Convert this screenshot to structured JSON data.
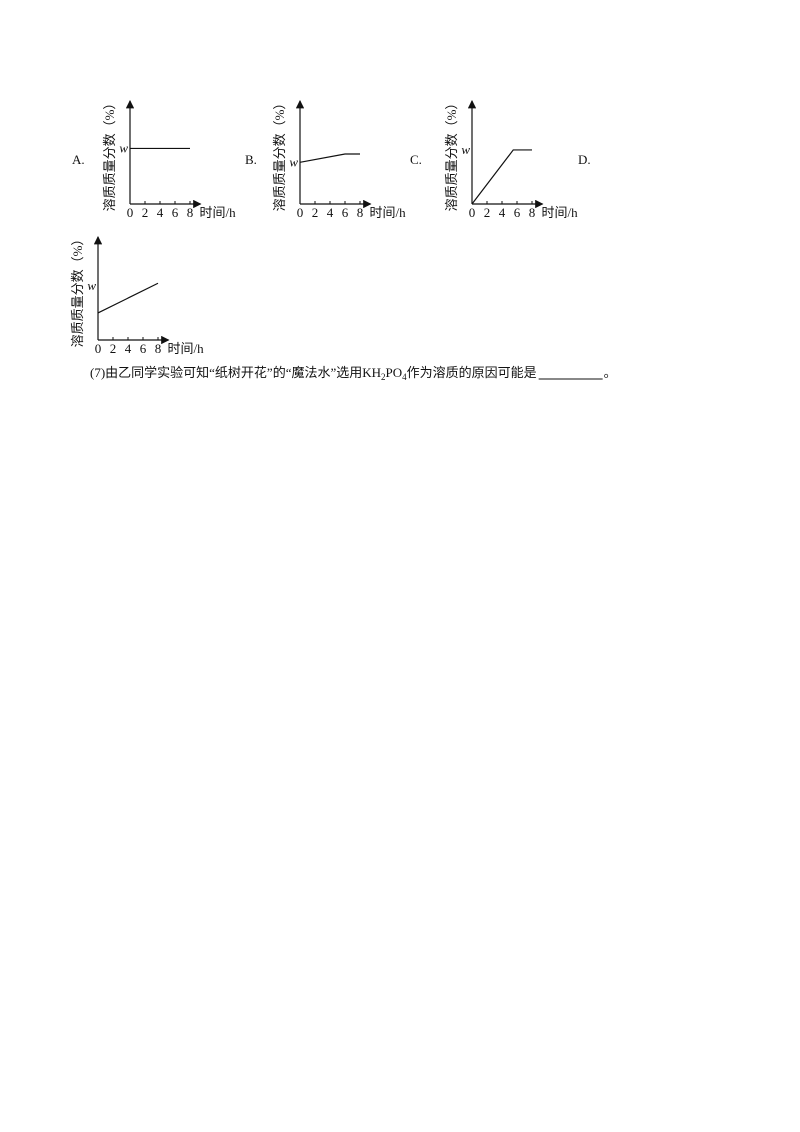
{
  "options": [
    {
      "label": "A.",
      "chart": {
        "type": "line",
        "y_label": "溶质质量分数（%）",
        "x_label": "时间/h",
        "xlim": [
          0,
          9
        ],
        "xticks": [
          0,
          2,
          4,
          6,
          8
        ],
        "ylim": [
          0,
          1.8
        ],
        "yticks": [
          {
            "value": 1,
            "label": "w"
          }
        ],
        "x": [
          0,
          8
        ],
        "values": [
          1,
          1
        ]
      }
    },
    {
      "label": "B.",
      "chart": {
        "type": "line",
        "y_label": "溶质质量分数（%）",
        "x_label": "时间/h",
        "xlim": [
          0,
          9
        ],
        "xticks": [
          0,
          2,
          4,
          6,
          8
        ],
        "ylim": [
          0,
          2.4
        ],
        "yticks": [
          {
            "value": 1,
            "label": "w"
          }
        ],
        "x": [
          0,
          6,
          8
        ],
        "values": [
          1,
          1.2,
          1.2
        ]
      }
    },
    {
      "label": "C.",
      "chart": {
        "type": "line",
        "y_label": "溶质质量分数（%）",
        "x_label": "时间/h",
        "xlim": [
          0,
          9
        ],
        "xticks": [
          0,
          2,
          4,
          6,
          8
        ],
        "ylim": [
          0,
          1.85
        ],
        "yticks": [
          {
            "value": 1,
            "label": "w"
          }
        ],
        "x": [
          0,
          5.5,
          8
        ],
        "values": [
          0,
          1,
          1
        ]
      }
    },
    {
      "label": "D.",
      "chart": {
        "type": "line",
        "y_label": "溶质质量分数（%）",
        "x_label": "时间/h",
        "xlim": [
          0,
          9
        ],
        "xticks": [
          0,
          2,
          4,
          6,
          8
        ],
        "ylim": [
          0,
          1.85
        ],
        "yticks": [
          {
            "value": 1,
            "label": "w"
          }
        ],
        "x": [
          0,
          8
        ],
        "values": [
          0.5,
          1.05
        ]
      }
    }
  ],
  "question": {
    "parts": [
      "(7)由乙同学实验可知“纸树开花”的“魔法水”选用KH",
      "2",
      "PO",
      "4",
      "作为溶质的原因可能是"
    ],
    "end": "。"
  }
}
